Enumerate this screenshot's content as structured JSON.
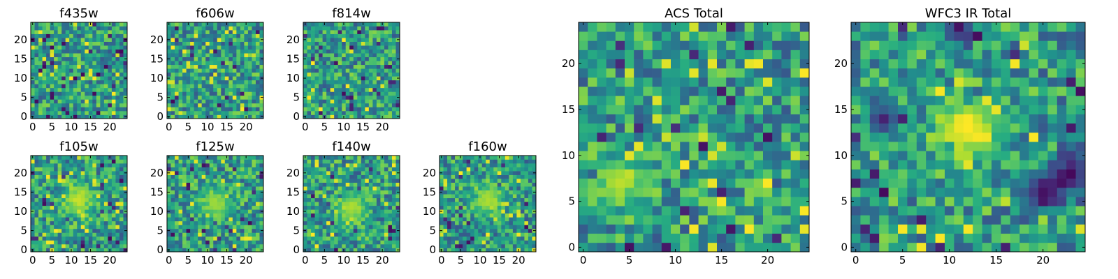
{
  "chart_data": {
    "type": "heatmap",
    "colormap": "viridis",
    "colors": {
      "low": "#440154",
      "mid": "#21918c",
      "high": "#fde725",
      "frame": "#000000",
      "background": "#ffffff"
    },
    "panels": [
      {
        "id": "f435w",
        "title": "f435w",
        "grid_size": 25,
        "extent": [
          -0.5,
          24.5
        ],
        "xticks": [
          0,
          5,
          10,
          15,
          20
        ],
        "yticks": [
          0,
          5,
          10,
          15,
          20
        ],
        "features": []
      },
      {
        "id": "f606w",
        "title": "f606w",
        "grid_size": 25,
        "extent": [
          -0.5,
          24.5
        ],
        "xticks": [
          0,
          5,
          10,
          15,
          20
        ],
        "yticks": [
          0,
          5,
          10,
          15,
          20
        ],
        "features": []
      },
      {
        "id": "f814w",
        "title": "f814w",
        "grid_size": 25,
        "extent": [
          -0.5,
          24.5
        ],
        "xticks": [
          0,
          5,
          10,
          15,
          20
        ],
        "yticks": [
          0,
          5,
          10,
          15,
          20
        ],
        "features": []
      },
      {
        "id": "f105w",
        "title": "f105w",
        "grid_size": 25,
        "extent": [
          -0.5,
          24.5
        ],
        "xticks": [
          0,
          5,
          10,
          15,
          20
        ],
        "yticks": [
          0,
          5,
          10,
          15,
          20
        ],
        "features": [
          {
            "x": 12,
            "y": 13,
            "radius": 3,
            "value": 0.92
          }
        ]
      },
      {
        "id": "f125w",
        "title": "f125w",
        "grid_size": 25,
        "extent": [
          -0.5,
          24.5
        ],
        "xticks": [
          0,
          5,
          10,
          15,
          20
        ],
        "yticks": [
          0,
          5,
          10,
          15,
          20
        ],
        "features": [
          {
            "x": 12,
            "y": 12,
            "radius": 3,
            "value": 0.85
          }
        ]
      },
      {
        "id": "f140w",
        "title": "f140w",
        "grid_size": 25,
        "extent": [
          -0.5,
          24.5
        ],
        "xticks": [
          0,
          5,
          10,
          15,
          20
        ],
        "yticks": [
          0,
          5,
          10,
          15,
          20
        ],
        "features": [
          {
            "x": 12,
            "y": 11,
            "radius": 3,
            "value": 0.88
          }
        ]
      },
      {
        "id": "f160w",
        "title": "f160w",
        "grid_size": 25,
        "extent": [
          -0.5,
          24.5
        ],
        "xticks": [
          0,
          5,
          10,
          15,
          20
        ],
        "yticks": [
          0,
          5,
          10,
          15,
          20
        ],
        "features": [
          {
            "x": 12,
            "y": 13,
            "radius": 3,
            "value": 0.88
          }
        ]
      },
      {
        "id": "acs_total",
        "title": "ACS Total",
        "grid_size": 25,
        "extent": [
          -0.5,
          24.5
        ],
        "xticks": [
          0,
          5,
          10,
          15,
          20
        ],
        "yticks": [
          0,
          5,
          10,
          15,
          20
        ],
        "features": [
          {
            "x": 4,
            "y": 7,
            "radius": 2,
            "value": 0.9
          }
        ]
      },
      {
        "id": "wfc3_ir_total",
        "title": "WFC3 IR Total",
        "grid_size": 25,
        "extent": [
          -0.5,
          24.5
        ],
        "xticks": [
          0,
          5,
          10,
          15,
          20
        ],
        "yticks": [
          0,
          5,
          10,
          15,
          20
        ],
        "features": [
          {
            "x": 12,
            "y": 13,
            "radius": 2.5,
            "value": 1.0
          },
          {
            "x": 23,
            "y": 8,
            "radius": 1.5,
            "value": 0.02
          },
          {
            "x": 20,
            "y": 6,
            "radius": 1.5,
            "value": 0.05
          },
          {
            "x": 11,
            "y": 24,
            "radius": 1.2,
            "value": 0.05
          },
          {
            "x": 3,
            "y": 14,
            "radius": 1.2,
            "value": 0.1
          }
        ]
      }
    ]
  }
}
